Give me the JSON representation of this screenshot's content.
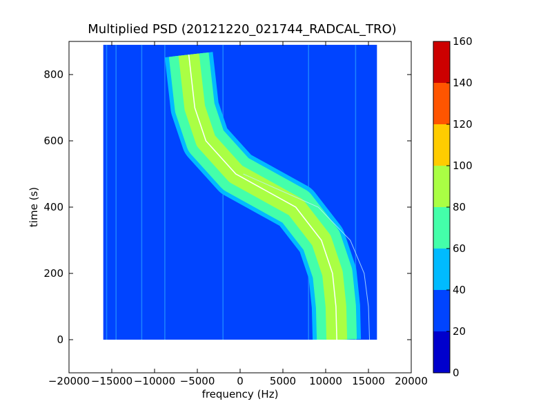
{
  "chart_data": {
    "type": "heatmap",
    "title": "Multiplied PSD (20121220_021744_RADCAL_TRO)",
    "xlabel": "frequency (Hz)",
    "ylabel": "time (s)",
    "xlim": [
      -20000,
      20000
    ],
    "ylim": [
      -100,
      900
    ],
    "x_ticks": [
      -20000,
      -15000,
      -10000,
      -5000,
      0,
      5000,
      10000,
      15000,
      20000
    ],
    "x_tick_labels": [
      "−20000",
      "−15000",
      "−10000",
      "−5000",
      "0",
      "5000",
      "10000",
      "15000",
      "20000"
    ],
    "y_ticks": [
      0,
      200,
      400,
      600,
      800
    ],
    "y_tick_labels": [
      "0",
      "200",
      "400",
      "600",
      "800"
    ],
    "data_extent": {
      "freq_min": -16000,
      "freq_max": 16000,
      "time_min": 0,
      "time_max": 890
    },
    "background_level": 30,
    "colorbar": {
      "levels": [
        0,
        20,
        40,
        60,
        80,
        100,
        120,
        140,
        160
      ],
      "tick_labels": [
        "0",
        "20",
        "40",
        "60",
        "80",
        "100",
        "120",
        "140",
        "160"
      ],
      "colors": [
        "#0000cc",
        "#0044ff",
        "#00bbff",
        "#44ffaa",
        "#aaff44",
        "#ffcc00",
        "#ff5500",
        "#cc0000"
      ]
    },
    "signal_track": {
      "description_points": [
        {
          "time": 860,
          "frequency": -6000
        },
        {
          "time": 700,
          "frequency": -5300
        },
        {
          "time": 600,
          "frequency": -4000
        },
        {
          "time": 500,
          "frequency": -500
        },
        {
          "time": 450,
          "frequency": 3000
        },
        {
          "time": 400,
          "frequency": 6500
        },
        {
          "time": 300,
          "frequency": 9500
        },
        {
          "time": 200,
          "frequency": 10800
        },
        {
          "time": 100,
          "frequency": 11200
        },
        {
          "time": 0,
          "frequency": 11300
        }
      ],
      "peak_level": 90
    },
    "stationary_lines_hz": [
      -15600,
      -14500,
      -11500,
      -8800,
      -2000,
      8000,
      13500
    ]
  }
}
